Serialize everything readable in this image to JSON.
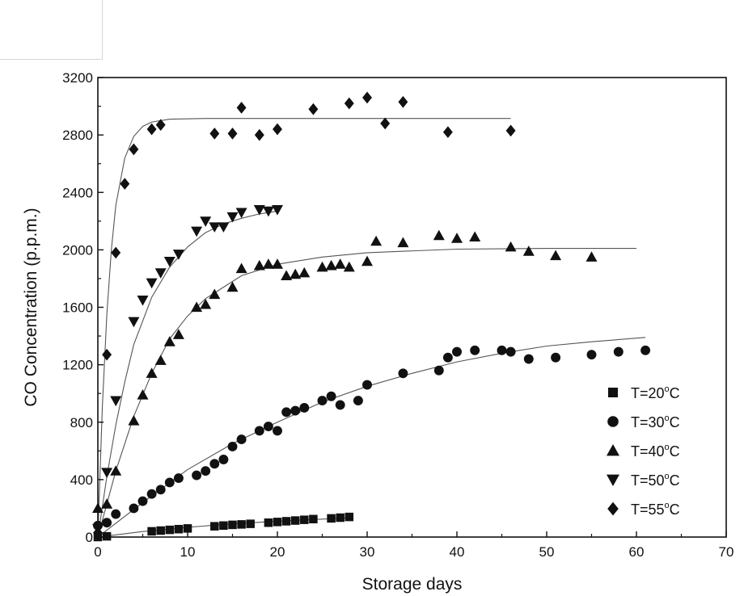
{
  "chart_data": {
    "type": "scatter",
    "xlabel": "Storage days",
    "ylabel": "CO Concentration (p.p.m.)",
    "xlim": [
      0,
      70
    ],
    "ylim": [
      0,
      3200
    ],
    "xticks": [
      0,
      10,
      20,
      30,
      40,
      50,
      60,
      70
    ],
    "yticks": [
      0,
      400,
      800,
      1200,
      1600,
      2000,
      2400,
      2800,
      3200
    ],
    "grid": false,
    "legend_position": "bottom-right",
    "series": [
      {
        "name": "T=20°C",
        "name_main": "T=20",
        "name_unit": "C",
        "marker": "square",
        "points": [
          [
            0,
            0
          ],
          [
            1,
            5
          ],
          [
            6,
            40
          ],
          [
            7,
            45
          ],
          [
            8,
            50
          ],
          [
            9,
            55
          ],
          [
            10,
            60
          ],
          [
            13,
            75
          ],
          [
            14,
            80
          ],
          [
            15,
            85
          ],
          [
            16,
            88
          ],
          [
            17,
            92
          ],
          [
            19,
            100
          ],
          [
            20,
            105
          ],
          [
            21,
            110
          ],
          [
            22,
            115
          ],
          [
            23,
            120
          ],
          [
            24,
            125
          ],
          [
            26,
            130
          ],
          [
            27,
            135
          ],
          [
            28,
            140
          ]
        ],
        "fit": [
          [
            0,
            0
          ],
          [
            5,
            38
          ],
          [
            10,
            68
          ],
          [
            15,
            92
          ],
          [
            20,
            110
          ],
          [
            25,
            125
          ],
          [
            28,
            135
          ]
        ]
      },
      {
        "name": "T=30°C",
        "name_main": "T=30",
        "name_unit": "C",
        "marker": "circle",
        "points": [
          [
            0,
            80
          ],
          [
            1,
            100
          ],
          [
            2,
            160
          ],
          [
            4,
            200
          ],
          [
            5,
            250
          ],
          [
            6,
            300
          ],
          [
            7,
            330
          ],
          [
            8,
            380
          ],
          [
            9,
            410
          ],
          [
            11,
            430
          ],
          [
            12,
            460
          ],
          [
            13,
            510
          ],
          [
            14,
            540
          ],
          [
            15,
            630
          ],
          [
            16,
            680
          ],
          [
            18,
            740
          ],
          [
            19,
            770
          ],
          [
            20,
            740
          ],
          [
            21,
            870
          ],
          [
            22,
            880
          ],
          [
            23,
            900
          ],
          [
            25,
            950
          ],
          [
            26,
            980
          ],
          [
            27,
            920
          ],
          [
            29,
            950
          ],
          [
            30,
            1060
          ],
          [
            34,
            1140
          ],
          [
            38,
            1160
          ],
          [
            39,
            1250
          ],
          [
            40,
            1290
          ],
          [
            42,
            1300
          ],
          [
            45,
            1300
          ],
          [
            46,
            1290
          ],
          [
            48,
            1240
          ],
          [
            51,
            1250
          ],
          [
            55,
            1270
          ],
          [
            58,
            1290
          ],
          [
            61,
            1300
          ]
        ],
        "fit": [
          [
            0,
            0
          ],
          [
            5,
            240
          ],
          [
            10,
            470
          ],
          [
            15,
            650
          ],
          [
            20,
            800
          ],
          [
            25,
            940
          ],
          [
            30,
            1050
          ],
          [
            35,
            1140
          ],
          [
            40,
            1220
          ],
          [
            45,
            1280
          ],
          [
            50,
            1330
          ],
          [
            55,
            1360
          ],
          [
            61,
            1390
          ]
        ]
      },
      {
        "name": "T=40°C",
        "name_main": "T=40",
        "name_unit": "C",
        "marker": "triangle-up",
        "points": [
          [
            0,
            200
          ],
          [
            1,
            230
          ],
          [
            2,
            460
          ],
          [
            4,
            810
          ],
          [
            5,
            990
          ],
          [
            6,
            1140
          ],
          [
            7,
            1230
          ],
          [
            8,
            1360
          ],
          [
            9,
            1410
          ],
          [
            11,
            1600
          ],
          [
            12,
            1620
          ],
          [
            13,
            1690
          ],
          [
            15,
            1740
          ],
          [
            16,
            1870
          ],
          [
            18,
            1890
          ],
          [
            19,
            1900
          ],
          [
            20,
            1900
          ],
          [
            21,
            1820
          ],
          [
            22,
            1830
          ],
          [
            23,
            1840
          ],
          [
            25,
            1880
          ],
          [
            26,
            1890
          ],
          [
            27,
            1900
          ],
          [
            28,
            1880
          ],
          [
            30,
            1920
          ],
          [
            31,
            2060
          ],
          [
            34,
            2050
          ],
          [
            38,
            2100
          ],
          [
            40,
            2080
          ],
          [
            42,
            2090
          ],
          [
            46,
            2020
          ],
          [
            48,
            1990
          ],
          [
            51,
            1960
          ],
          [
            55,
            1950
          ]
        ],
        "fit": [
          [
            0,
            0
          ],
          [
            2,
            460
          ],
          [
            4,
            840
          ],
          [
            6,
            1140
          ],
          [
            8,
            1380
          ],
          [
            10,
            1540
          ],
          [
            12,
            1660
          ],
          [
            14,
            1740
          ],
          [
            16,
            1820
          ],
          [
            20,
            1900
          ],
          [
            25,
            1950
          ],
          [
            30,
            1980
          ],
          [
            40,
            2005
          ],
          [
            50,
            2010
          ],
          [
            60,
            2010
          ]
        ]
      },
      {
        "name": "T=50°C",
        "name_main": "T=50",
        "name_unit": "C",
        "marker": "triangle-down",
        "points": [
          [
            0,
            60
          ],
          [
            1,
            450
          ],
          [
            2,
            950
          ],
          [
            4,
            1500
          ],
          [
            5,
            1650
          ],
          [
            6,
            1770
          ],
          [
            7,
            1840
          ],
          [
            8,
            1920
          ],
          [
            9,
            1970
          ],
          [
            11,
            2130
          ],
          [
            12,
            2200
          ],
          [
            13,
            2160
          ],
          [
            14,
            2160
          ],
          [
            15,
            2230
          ],
          [
            16,
            2260
          ],
          [
            18,
            2280
          ],
          [
            19,
            2270
          ],
          [
            20,
            2280
          ]
        ],
        "fit": [
          [
            0,
            0
          ],
          [
            1,
            420
          ],
          [
            2,
            780
          ],
          [
            3,
            1080
          ],
          [
            4,
            1340
          ],
          [
            6,
            1670
          ],
          [
            8,
            1880
          ],
          [
            10,
            2020
          ],
          [
            12,
            2120
          ],
          [
            14,
            2180
          ],
          [
            16,
            2220
          ],
          [
            18,
            2250
          ],
          [
            20,
            2270
          ]
        ]
      },
      {
        "name": "T=55°C",
        "name_main": "T=55",
        "name_unit": "C",
        "marker": "diamond",
        "points": [
          [
            0,
            30
          ],
          [
            1,
            1270
          ],
          [
            2,
            1980
          ],
          [
            3,
            2460
          ],
          [
            4,
            2700
          ],
          [
            6,
            2840
          ],
          [
            7,
            2870
          ],
          [
            13,
            2810
          ],
          [
            15,
            2810
          ],
          [
            16,
            2990
          ],
          [
            18,
            2800
          ],
          [
            20,
            2840
          ],
          [
            24,
            2980
          ],
          [
            28,
            3020
          ],
          [
            30,
            3060
          ],
          [
            32,
            2880
          ],
          [
            34,
            3030
          ],
          [
            39,
            2820
          ],
          [
            46,
            2830
          ]
        ],
        "fit": [
          [
            0,
            0
          ],
          [
            0.5,
            900
          ],
          [
            1,
            1550
          ],
          [
            1.5,
            2000
          ],
          [
            2,
            2310
          ],
          [
            3,
            2640
          ],
          [
            4,
            2790
          ],
          [
            5,
            2860
          ],
          [
            6,
            2890
          ],
          [
            8,
            2910
          ],
          [
            12,
            2915
          ],
          [
            20,
            2915
          ],
          [
            46,
            2915
          ]
        ]
      }
    ]
  }
}
